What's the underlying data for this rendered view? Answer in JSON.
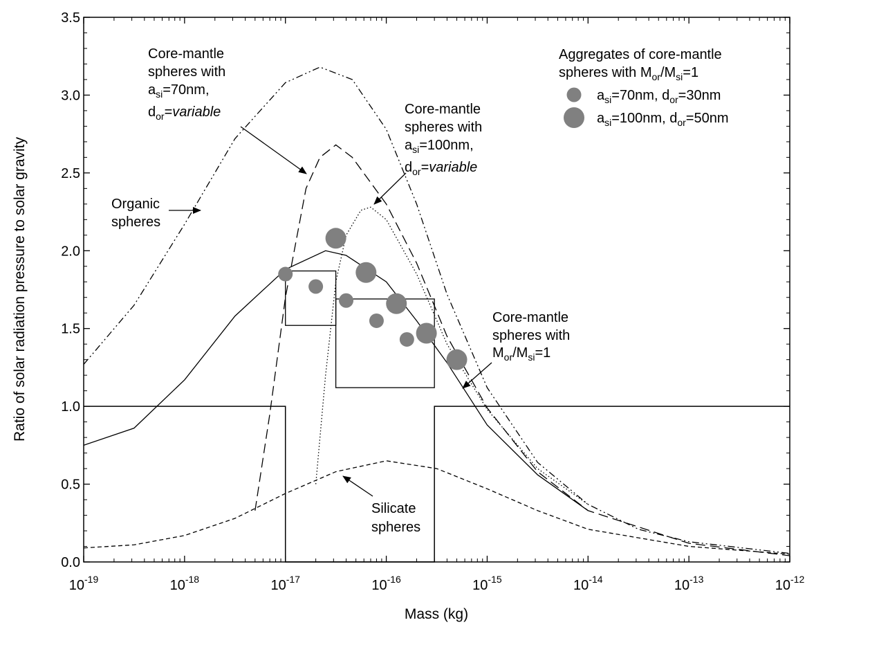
{
  "chart_data": {
    "type": "line",
    "xlabel": "Mass (kg)",
    "ylabel": "Ratio of solar radiation pressure to solar gravity",
    "xscale": "log",
    "xlim": [
      1e-19,
      1e-12
    ],
    "ylim": [
      0,
      3.5
    ],
    "grid": false,
    "x_tick_labels": [
      {
        "base": "10",
        "exp": "-19",
        "value": -19
      },
      {
        "base": "10",
        "exp": "-18",
        "value": -18
      },
      {
        "base": "10",
        "exp": "-17",
        "value": -17
      },
      {
        "base": "10",
        "exp": "-16",
        "value": -16
      },
      {
        "base": "10",
        "exp": "-15",
        "value": -15
      },
      {
        "base": "10",
        "exp": "-14",
        "value": -14
      },
      {
        "base": "10",
        "exp": "-13",
        "value": -13
      },
      {
        "base": "10",
        "exp": "-12",
        "value": -12
      }
    ],
    "y_tick_labels": [
      {
        "text": "0.0",
        "value": 0.0
      },
      {
        "text": "0.5",
        "value": 0.5
      },
      {
        "text": "1.0",
        "value": 1.0
      },
      {
        "text": "1.5",
        "value": 1.5
      },
      {
        "text": "2.0",
        "value": 2.0
      },
      {
        "text": "2.5",
        "value": 2.5
      },
      {
        "text": "3.0",
        "value": 3.0
      },
      {
        "text": "3.5",
        "value": 3.5
      }
    ],
    "series": [
      {
        "key": "organic",
        "style": "dashdotdot",
        "points": [
          [
            1e-19,
            1.27
          ],
          [
            3.16e-19,
            1.65
          ],
          [
            1e-18,
            2.17
          ],
          [
            3.16e-18,
            2.72
          ],
          [
            1e-17,
            3.08
          ],
          [
            2.2e-17,
            3.18
          ],
          [
            4.6e-17,
            3.1
          ],
          [
            1e-16,
            2.78
          ],
          [
            2e-16,
            2.3
          ],
          [
            4e-16,
            1.72
          ],
          [
            1e-15,
            1.12
          ],
          [
            3.16e-15,
            0.64
          ],
          [
            1e-14,
            0.37
          ],
          [
            3.16e-14,
            0.21
          ],
          [
            1e-13,
            0.13
          ],
          [
            1e-12,
            0.055
          ]
        ]
      },
      {
        "key": "core-mantle-70",
        "style": "longdash",
        "points": [
          [
            5e-18,
            0.33
          ],
          [
            7e-18,
            0.95
          ],
          [
            1e-17,
            1.7
          ],
          [
            1.6e-17,
            2.4
          ],
          [
            2.2e-17,
            2.6
          ],
          [
            3.16e-17,
            2.68
          ],
          [
            4.6e-17,
            2.6
          ],
          [
            1e-16,
            2.3
          ],
          [
            2e-16,
            1.92
          ],
          [
            4e-16,
            1.45
          ],
          [
            1e-15,
            0.99
          ],
          [
            3.16e-15,
            0.58
          ],
          [
            1e-14,
            0.33
          ],
          [
            1e-13,
            0.12
          ],
          [
            1e-12,
            0.04
          ]
        ]
      },
      {
        "key": "core-mantle-100",
        "style": "dotted",
        "points": [
          [
            2e-17,
            0.5
          ],
          [
            2.5e-17,
            1.2
          ],
          [
            3.16e-17,
            1.8
          ],
          [
            4e-17,
            2.1
          ],
          [
            5.6e-17,
            2.26
          ],
          [
            7e-17,
            2.28
          ],
          [
            1e-16,
            2.2
          ],
          [
            2e-16,
            1.85
          ],
          [
            4e-16,
            1.4
          ],
          [
            1e-15,
            0.98
          ],
          [
            3.16e-15,
            0.6
          ],
          [
            1e-14,
            0.37
          ]
        ]
      },
      {
        "key": "core-mantle-mormsi1",
        "style": "solid",
        "points": [
          [
            1e-19,
            0.75
          ],
          [
            3.16e-19,
            0.86
          ],
          [
            1e-18,
            1.17
          ],
          [
            3.16e-18,
            1.58
          ],
          [
            1e-17,
            1.88
          ],
          [
            2.5e-17,
            2.0
          ],
          [
            4e-17,
            1.97
          ],
          [
            1e-16,
            1.8
          ],
          [
            2e-16,
            1.55
          ],
          [
            4e-16,
            1.28
          ],
          [
            1e-15,
            0.88
          ],
          [
            3.16e-15,
            0.56
          ],
          [
            1e-14,
            0.33
          ]
        ]
      },
      {
        "key": "silicate",
        "style": "shortdash",
        "points": [
          [
            1e-19,
            0.09
          ],
          [
            3.16e-19,
            0.11
          ],
          [
            1e-18,
            0.17
          ],
          [
            3.16e-18,
            0.28
          ],
          [
            1e-17,
            0.44
          ],
          [
            3.16e-17,
            0.58
          ],
          [
            1e-16,
            0.65
          ],
          [
            3.16e-16,
            0.6
          ],
          [
            1e-15,
            0.47
          ],
          [
            3.16e-15,
            0.33
          ],
          [
            1e-14,
            0.21
          ],
          [
            1e-13,
            0.1
          ],
          [
            1e-12,
            0.05
          ]
        ]
      },
      {
        "key": "step-boundary",
        "style": "solid",
        "points": [
          [
            1e-19,
            1.0
          ],
          [
            1e-17,
            1.0
          ],
          [
            1e-17,
            0.0
          ],
          [
            3e-16,
            0.0
          ],
          [
            3e-16,
            1.0
          ],
          [
            1e-12,
            1.0
          ]
        ]
      }
    ],
    "boxes": [
      {
        "x0": 1e-17,
        "x1": 3.16e-17,
        "y0": 1.52,
        "y1": 1.87
      },
      {
        "x0": 3.16e-17,
        "x1": 3e-16,
        "y0": 1.12,
        "y1": 1.69
      }
    ],
    "scatter_series": [
      {
        "key": "agg70",
        "label": "70",
        "points": [
          [
            1e-17,
            1.85
          ],
          [
            2e-17,
            1.77
          ],
          [
            4e-17,
            1.68
          ],
          [
            8e-17,
            1.55
          ],
          [
            1.6e-16,
            1.43
          ]
        ]
      },
      {
        "key": "agg100",
        "label": "100",
        "points": [
          [
            3.16e-17,
            2.08
          ],
          [
            6.3e-17,
            1.86
          ],
          [
            1.26e-16,
            1.66
          ],
          [
            2.5e-16,
            1.47
          ],
          [
            5e-16,
            1.3
          ]
        ]
      }
    ],
    "legend": {
      "placement": "top-right",
      "title_line1": "Aggregates of core-mantle",
      "title_line2_pre": "spheres with M",
      "title_line2_sub1": "or",
      "title_line2_mid": "/M",
      "title_line2_sub2": "si",
      "title_line2_post": "=1",
      "entry1": {
        "a": "a",
        "a_sub": "si",
        "a_val": "=70nm, d",
        "d_sub": "or",
        "d_val": "=30nm"
      },
      "entry2": {
        "a": "a",
        "a_sub": "si",
        "a_val": "=100nm, d",
        "d_sub": "or",
        "d_val": "=50nm"
      }
    },
    "annotations": {
      "cm70": {
        "line1": "Core-mantle",
        "line2": "spheres with",
        "a": "a",
        "a_sub": "si",
        "a_val": "=70nm,",
        "d": "d",
        "d_sub": "or",
        "d_eq": "=",
        "d_var": "variable"
      },
      "cm100": {
        "line1": "Core-mantle",
        "line2": "spheres with",
        "a": "a",
        "a_sub": "si",
        "a_val": "=100nm,",
        "d": "d",
        "d_sub": "or",
        "d_eq": "=",
        "d_var": "variable"
      },
      "organic": {
        "line1": "Organic",
        "line2": "spheres"
      },
      "cm1": {
        "line1": "Core-mantle",
        "line2": "spheres with",
        "m": "M",
        "m_sub1": "or",
        "m_mid": "/M",
        "m_sub2": "si",
        "m_post": "=1"
      },
      "silicate": {
        "line1": "Silicate",
        "line2": "spheres"
      }
    },
    "colors": {
      "line": "#000000",
      "marker": "#808080"
    }
  }
}
